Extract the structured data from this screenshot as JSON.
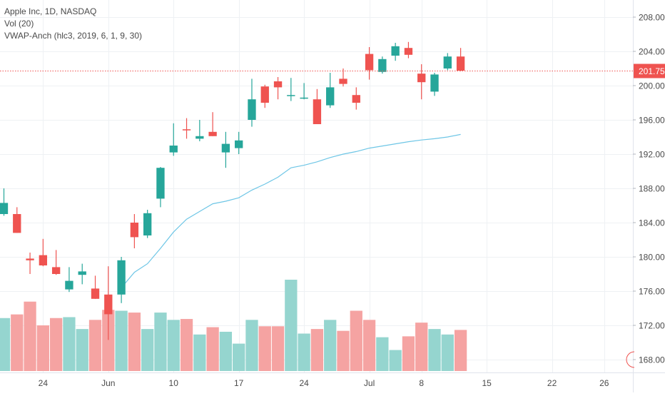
{
  "legend": {
    "symbol_line": "Apple Inc, 1D, NASDAQ",
    "volume_line": "Vol (20)",
    "vwap_line": "VWAP-Anch (hlc3, 2019, 6, 1, 9, 30)"
  },
  "colors": {
    "up": "#26a69a",
    "down": "#ef5350",
    "up_volume": "#95d5cf",
    "down_volume": "#f5a3a2",
    "vwap": "#6ec6e6",
    "grid": "#eef1f4",
    "price_line": "#ef5350",
    "axis_text": "#4a4a4a"
  },
  "current_price_label": "201.75",
  "chart_data": {
    "type": "candlestick",
    "title": "Apple Inc, 1D, NASDAQ",
    "ylim": [
      166.5,
      210
    ],
    "grid": true,
    "y_ticks": [
      "168.00",
      "172.00",
      "176.00",
      "180.00",
      "184.00",
      "188.00",
      "192.00",
      "196.00",
      "200.00",
      "204.00",
      "208.00"
    ],
    "x_ticks": [
      {
        "label": "24",
        "index": 3
      },
      {
        "label": "Jun",
        "index": 8
      },
      {
        "label": "10",
        "index": 13
      },
      {
        "label": "17",
        "index": 18
      },
      {
        "label": "24",
        "index": 23
      },
      {
        "label": "Jul",
        "index": 28
      },
      {
        "label": "8",
        "index": 32
      },
      {
        "label": "15",
        "index": 37
      },
      {
        "label": "22",
        "index": 42
      },
      {
        "label": "26",
        "index": 46
      }
    ],
    "x_range": [
      -0.3,
      48.2
    ],
    "candles": [
      {
        "open": 185.0,
        "high": 188.0,
        "low": 184.8,
        "close": 186.3
      },
      {
        "open": 185.0,
        "high": 185.8,
        "low": 182.8,
        "close": 182.8
      },
      {
        "open": 179.8,
        "high": 180.5,
        "low": 178.0,
        "close": 179.6
      },
      {
        "open": 180.2,
        "high": 182.1,
        "low": 178.9,
        "close": 179.0
      },
      {
        "open": 178.8,
        "high": 180.8,
        "low": 177.9,
        "close": 178.0
      },
      {
        "open": 176.2,
        "high": 178.8,
        "low": 175.9,
        "close": 177.2
      },
      {
        "open": 177.9,
        "high": 179.2,
        "low": 176.8,
        "close": 178.3
      },
      {
        "open": 176.3,
        "high": 177.8,
        "low": 175.1,
        "close": 175.1
      },
      {
        "open": 175.6,
        "high": 178.9,
        "low": 170.3,
        "close": 173.3
      },
      {
        "open": 175.6,
        "high": 180.0,
        "low": 174.6,
        "close": 179.6
      },
      {
        "open": 184.0,
        "high": 185.0,
        "low": 181.0,
        "close": 182.3
      },
      {
        "open": 182.5,
        "high": 185.5,
        "low": 182.2,
        "close": 185.1
      },
      {
        "open": 186.8,
        "high": 190.5,
        "low": 185.8,
        "close": 190.4
      },
      {
        "open": 192.2,
        "high": 195.6,
        "low": 191.8,
        "close": 193.0
      },
      {
        "open": 194.9,
        "high": 196.2,
        "low": 193.8,
        "close": 194.8
      },
      {
        "open": 193.8,
        "high": 196.0,
        "low": 193.5,
        "close": 194.1
      },
      {
        "open": 194.6,
        "high": 196.9,
        "low": 194.1,
        "close": 194.1
      },
      {
        "open": 192.2,
        "high": 194.6,
        "low": 190.4,
        "close": 193.2
      },
      {
        "open": 192.7,
        "high": 194.6,
        "low": 192.0,
        "close": 193.6
      },
      {
        "open": 196.0,
        "high": 200.8,
        "low": 195.2,
        "close": 198.4
      },
      {
        "open": 199.9,
        "high": 200.1,
        "low": 197.4,
        "close": 198.0
      },
      {
        "open": 200.5,
        "high": 201.0,
        "low": 198.4,
        "close": 199.8
      },
      {
        "open": 198.9,
        "high": 200.9,
        "low": 198.2,
        "close": 198.9
      },
      {
        "open": 198.6,
        "high": 200.3,
        "low": 198.4,
        "close": 198.6
      },
      {
        "open": 198.4,
        "high": 199.6,
        "low": 195.5,
        "close": 195.5
      },
      {
        "open": 197.7,
        "high": 201.5,
        "low": 197.4,
        "close": 199.8
      },
      {
        "open": 200.8,
        "high": 202.0,
        "low": 199.9,
        "close": 200.2
      },
      {
        "open": 198.9,
        "high": 199.8,
        "low": 197.2,
        "close": 198.0
      },
      {
        "open": 203.7,
        "high": 204.5,
        "low": 200.7,
        "close": 201.8
      },
      {
        "open": 201.6,
        "high": 203.4,
        "low": 201.4,
        "close": 203.1
      },
      {
        "open": 203.5,
        "high": 205.0,
        "low": 202.9,
        "close": 204.6
      },
      {
        "open": 204.4,
        "high": 205.1,
        "low": 203.2,
        "close": 203.6
      },
      {
        "open": 201.4,
        "high": 202.5,
        "low": 198.4,
        "close": 200.4
      },
      {
        "open": 199.3,
        "high": 201.5,
        "low": 198.8,
        "close": 201.3
      },
      {
        "open": 202.0,
        "high": 203.8,
        "low": 201.8,
        "close": 203.4
      },
      {
        "open": 203.4,
        "high": 204.4,
        "low": 201.7,
        "close": 201.75
      }
    ],
    "volume": [
      0.58,
      0.62,
      0.76,
      0.5,
      0.58,
      0.59,
      0.46,
      0.56,
      0.67,
      0.66,
      0.64,
      0.46,
      0.64,
      0.56,
      0.57,
      0.4,
      0.48,
      0.43,
      0.3,
      0.56,
      0.49,
      0.49,
      1.0,
      0.41,
      0.46,
      0.56,
      0.44,
      0.66,
      0.56,
      0.37,
      0.23,
      0.38,
      0.53,
      0.46,
      0.4,
      0.45
    ],
    "vwap": [
      {
        "index": 9,
        "value": 176.4
      },
      {
        "index": 10,
        "value": 178.2
      },
      {
        "index": 11,
        "value": 179.2
      },
      {
        "index": 12,
        "value": 181.0
      },
      {
        "index": 13,
        "value": 182.9
      },
      {
        "index": 14,
        "value": 184.4
      },
      {
        "index": 15,
        "value": 185.3
      },
      {
        "index": 16,
        "value": 186.2
      },
      {
        "index": 17,
        "value": 186.5
      },
      {
        "index": 18,
        "value": 186.9
      },
      {
        "index": 19,
        "value": 187.8
      },
      {
        "index": 20,
        "value": 188.5
      },
      {
        "index": 21,
        "value": 189.3
      },
      {
        "index": 22,
        "value": 190.4
      },
      {
        "index": 23,
        "value": 190.7
      },
      {
        "index": 24,
        "value": 191.1
      },
      {
        "index": 25,
        "value": 191.6
      },
      {
        "index": 26,
        "value": 192.0
      },
      {
        "index": 27,
        "value": 192.3
      },
      {
        "index": 28,
        "value": 192.7
      },
      {
        "index": 29,
        "value": 192.95
      },
      {
        "index": 30,
        "value": 193.2
      },
      {
        "index": 31,
        "value": 193.45
      },
      {
        "index": 32,
        "value": 193.65
      },
      {
        "index": 33,
        "value": 193.8
      },
      {
        "index": 34,
        "value": 194.0
      },
      {
        "index": 35,
        "value": 194.3
      }
    ]
  }
}
